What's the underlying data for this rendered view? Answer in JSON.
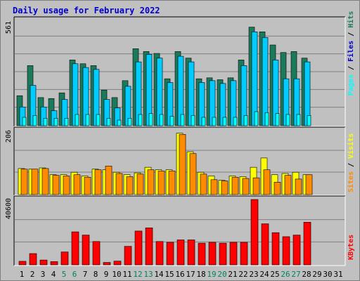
{
  "title": "Daily usage for February 2022",
  "colors": {
    "hits": "#1c7a5c",
    "files": "#00ccff",
    "pages": "#00ffff",
    "visits": "#ffff00",
    "sites": "#ff8c00",
    "kbytes": "#ff0000",
    "weekend": "#008060",
    "weekday": "#000000"
  },
  "chart_data": [
    {
      "type": "bar",
      "name": "requests",
      "ymax_label": "561",
      "ylim": [
        0,
        561
      ],
      "right_label": [
        "Pages",
        "Files",
        "Hits"
      ],
      "categories": [
        "1",
        "2",
        "3",
        "4",
        "5",
        "6",
        "7",
        "8",
        "9",
        "10",
        "11",
        "12",
        "13",
        "14",
        "15",
        "16",
        "17",
        "18",
        "19",
        "20",
        "21",
        "22",
        "23",
        "24",
        "25",
        "26",
        "27",
        "28",
        "29",
        "30",
        "31"
      ],
      "series": [
        {
          "name": "Hits",
          "values": [
            160,
            320,
            150,
            145,
            175,
            350,
            330,
            320,
            190,
            150,
            240,
            410,
            395,
            385,
            250,
            395,
            360,
            250,
            255,
            245,
            255,
            350,
            525,
            500,
            430,
            390,
            395,
            360,
            0,
            0,
            0
          ]
        },
        {
          "name": "Files",
          "values": [
            100,
            215,
            100,
            80,
            140,
            330,
            310,
            300,
            140,
            95,
            210,
            340,
            380,
            360,
            230,
            370,
            340,
            230,
            240,
            225,
            240,
            320,
            500,
            470,
            350,
            250,
            250,
            340,
            0,
            0,
            0
          ]
        },
        {
          "name": "Pages",
          "values": [
            45,
            55,
            40,
            40,
            40,
            60,
            60,
            60,
            40,
            30,
            40,
            60,
            65,
            60,
            50,
            60,
            55,
            45,
            45,
            45,
            45,
            55,
            75,
            70,
            65,
            60,
            60,
            55,
            0,
            0,
            0
          ]
        }
      ]
    },
    {
      "type": "bar",
      "name": "visitors",
      "ymax_label": "206",
      "ylim": [
        0,
        206
      ],
      "right_label": [
        "Sites",
        "Visits"
      ],
      "categories": [
        "1",
        "2",
        "3",
        "4",
        "5",
        "6",
        "7",
        "8",
        "9",
        "10",
        "11",
        "12",
        "13",
        "14",
        "15",
        "16",
        "17",
        "18",
        "19",
        "20",
        "21",
        "22",
        "23",
        "24",
        "25",
        "26",
        "27",
        "28",
        "29",
        "30",
        "31"
      ],
      "series": [
        {
          "name": "Visits",
          "values": [
            84,
            82,
            86,
            64,
            64,
            72,
            60,
            82,
            80,
            72,
            64,
            70,
            88,
            80,
            80,
            198,
            138,
            72,
            60,
            46,
            60,
            58,
            88,
            118,
            64,
            68,
            72,
            64,
            0,
            0,
            0
          ]
        },
        {
          "name": "Sites",
          "values": [
            82,
            82,
            84,
            62,
            60,
            64,
            56,
            80,
            92,
            68,
            58,
            66,
            80,
            76,
            76,
            194,
            132,
            66,
            48,
            44,
            56,
            52,
            54,
            80,
            40,
            62,
            50,
            64,
            0,
            0,
            0
          ]
        }
      ]
    },
    {
      "type": "bar",
      "name": "kbytes",
      "ymax_label": "40600",
      "ylim": [
        0,
        40600
      ],
      "right_label": [
        "KBytes"
      ],
      "categories": [
        "1",
        "2",
        "3",
        "4",
        "5",
        "6",
        "7",
        "8",
        "9",
        "10",
        "11",
        "12",
        "13",
        "14",
        "15",
        "16",
        "17",
        "18",
        "19",
        "20",
        "21",
        "22",
        "23",
        "24",
        "25",
        "26",
        "27",
        "28",
        "29",
        "30",
        "31"
      ],
      "series": [
        {
          "name": "KBytes",
          "values": [
            2200,
            7000,
            3000,
            2000,
            8000,
            20500,
            18500,
            14500,
            1500,
            2300,
            11500,
            21000,
            23000,
            14500,
            14000,
            15500,
            15500,
            13500,
            14000,
            13500,
            14000,
            14000,
            40600,
            25500,
            20000,
            17500,
            18500,
            26500,
            0,
            0,
            0
          ]
        }
      ]
    }
  ],
  "weekend_days": [
    5,
    6,
    12,
    13,
    19,
    20,
    26,
    27
  ]
}
